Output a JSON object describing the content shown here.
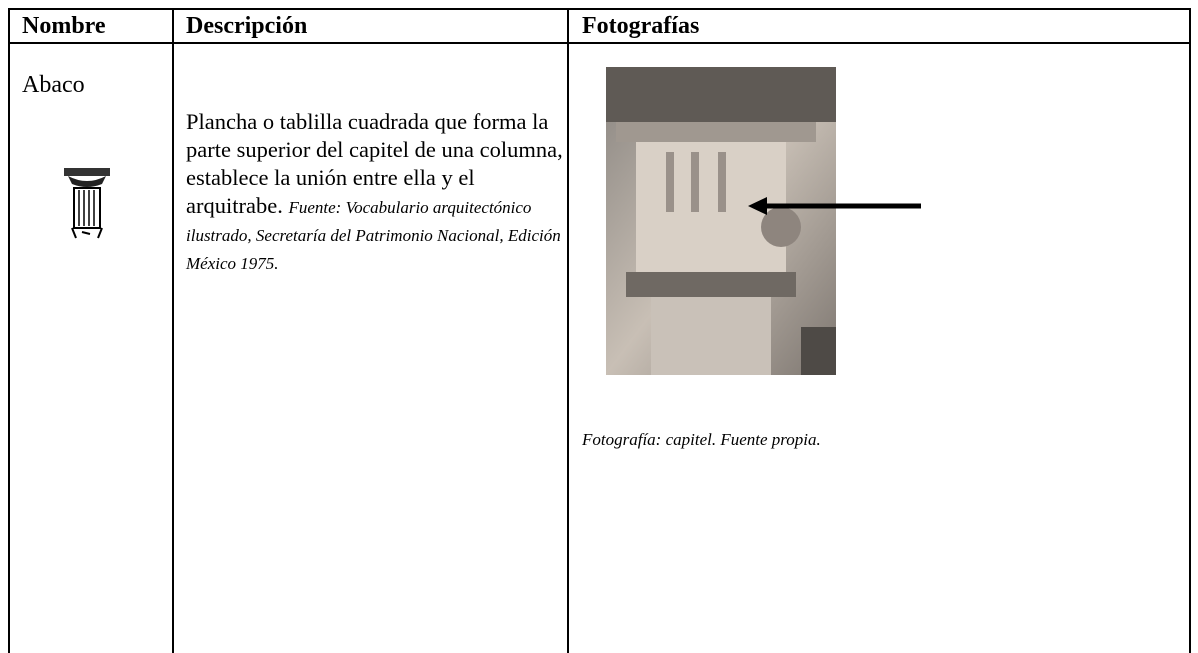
{
  "table": {
    "header": [
      "Nombre",
      "Descripción",
      "Fotografías"
    ],
    "rows": [
      {
        "name": "Abaco",
        "description": "Plancha o tablilla cuadrada que forma la parte superior del capitel de una columna, establece la unión entre ella y el arquitrabe.",
        "source": "Fuente: Vocabulario arquitectónico ilustrado, Secretaría del Patrimonio Nacional, Edición México 1975.",
        "caption": "Fotografía: capitel. Fuente propia."
      }
    ]
  }
}
